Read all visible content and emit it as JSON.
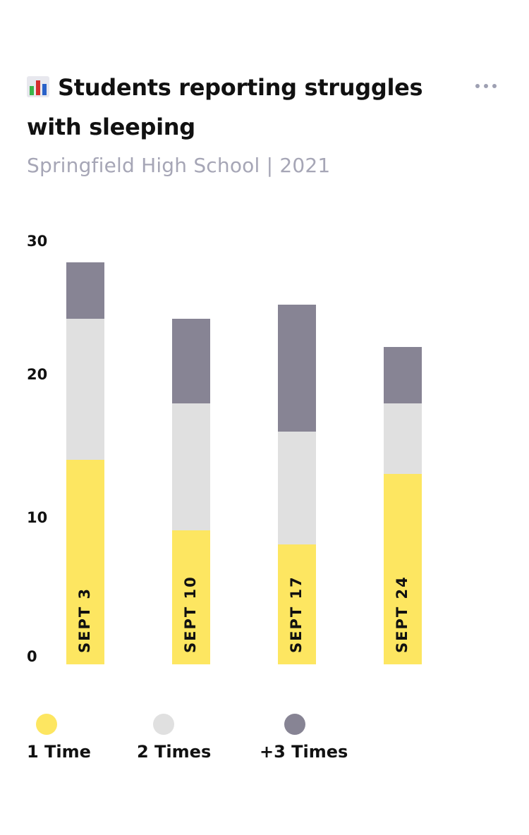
{
  "header": {
    "title": "Students reporting struggles with sleeping",
    "subtitle": "Springfield High School | 2021",
    "title_icon": "bar-chart-emoji-icon",
    "more_icon": "more-horizontal-icon"
  },
  "colors": {
    "one_time": "#fde661",
    "two_times": "#e0e0e0",
    "three_plus": "#878494",
    "text": "#111111",
    "subtitle": "#a6a6b6"
  },
  "chart_data": {
    "type": "bar",
    "stacked": true,
    "title": "Students reporting struggles with sleeping",
    "subtitle": "Springfield High School | 2021",
    "categories": [
      "SEPT 3",
      "SEPT 10",
      "SEPT 17",
      "SEPT 24"
    ],
    "series": [
      {
        "name": "1 Time",
        "color": "#fde661",
        "values": [
          14.5,
          9.5,
          8.5,
          13.5
        ]
      },
      {
        "name": "2 Times",
        "color": "#e0e0e0",
        "values": [
          10,
          9,
          8,
          5
        ]
      },
      {
        "name": "+3 Times",
        "color": "#878494",
        "values": [
          4,
          6,
          9,
          4
        ]
      }
    ],
    "yticks": [
      0,
      10,
      20,
      30
    ],
    "ylim": [
      0,
      30
    ],
    "grid": false,
    "legend": "bottom"
  }
}
